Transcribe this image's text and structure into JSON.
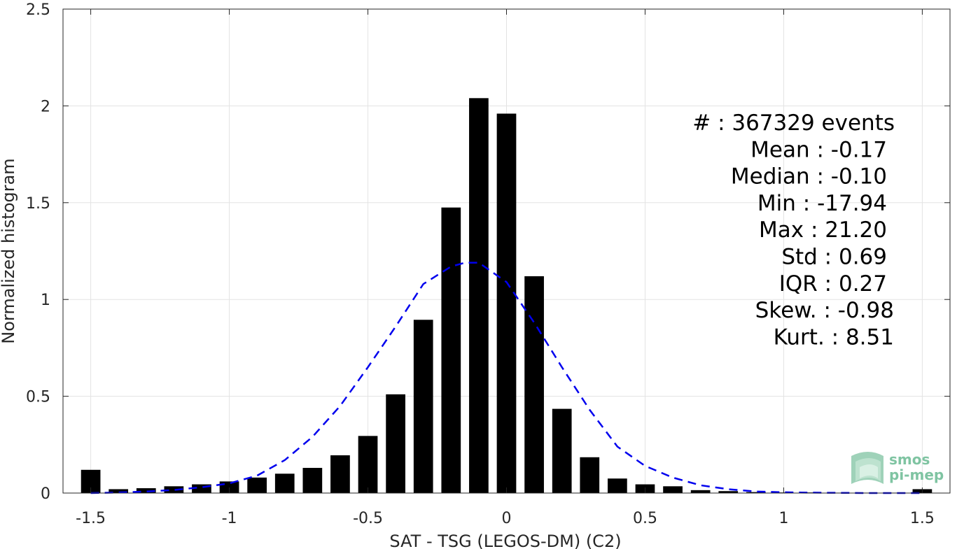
{
  "chart_data": {
    "type": "bar",
    "title": "",
    "xlabel": "SAT - TSG (LEGOS-DM) (C2)",
    "ylabel": "Normalized histogram",
    "xlim": [
      -1.6,
      1.6
    ],
    "ylim": [
      0,
      2.5
    ],
    "grid": true,
    "xticks": [
      -1.5,
      -1,
      -0.5,
      0,
      0.5,
      1,
      1.5
    ],
    "xtick_labels": [
      "-1.5",
      "-1",
      "-0.5",
      "0",
      "0.5",
      "1",
      "1.5"
    ],
    "yticks": [
      0,
      0.5,
      1,
      1.5,
      2,
      2.5
    ],
    "ytick_labels": [
      "0",
      "0.5",
      "1",
      "1.5",
      "2",
      "2.5"
    ],
    "bar_width": 0.07,
    "series": [
      {
        "type": "bar",
        "color": "#000000",
        "x": [
          -1.5,
          -1.4,
          -1.3,
          -1.2,
          -1.1,
          -1.0,
          -0.9,
          -0.8,
          -0.7,
          -0.6,
          -0.5,
          -0.4,
          -0.3,
          -0.2,
          -0.1,
          0.0,
          0.1,
          0.2,
          0.3,
          0.4,
          0.5,
          0.6,
          0.7,
          0.8,
          0.9,
          1.0,
          1.1,
          1.2,
          1.3,
          1.4,
          1.5
        ],
        "values": [
          0.12,
          0.02,
          0.025,
          0.035,
          0.045,
          0.06,
          0.08,
          0.1,
          0.13,
          0.195,
          0.295,
          0.51,
          0.895,
          1.475,
          2.04,
          1.96,
          1.12,
          0.435,
          0.185,
          0.075,
          0.045,
          0.035,
          0.015,
          0.01,
          0.005,
          0.003,
          0.003,
          0.002,
          0.002,
          0.002,
          0.02
        ]
      },
      {
        "type": "line",
        "style": "dashed",
        "color": "#0000ee",
        "x": [
          -1.5,
          -1.4,
          -1.3,
          -1.2,
          -1.1,
          -1.0,
          -0.9,
          -0.8,
          -0.7,
          -0.6,
          -0.5,
          -0.4,
          -0.3,
          -0.2,
          -0.15,
          -0.1,
          0.0,
          0.1,
          0.2,
          0.3,
          0.4,
          0.5,
          0.6,
          0.7,
          0.8,
          0.9,
          1.0,
          1.1,
          1.2,
          1.3,
          1.4,
          1.5
        ],
        "values": [
          0.0,
          0.003,
          0.008,
          0.016,
          0.03,
          0.05,
          0.09,
          0.17,
          0.29,
          0.45,
          0.65,
          0.86,
          1.08,
          1.17,
          1.19,
          1.19,
          1.09,
          0.88,
          0.65,
          0.43,
          0.24,
          0.14,
          0.08,
          0.04,
          0.02,
          0.008,
          0.004,
          0.002,
          0.001,
          0.0,
          0.0,
          0.0
        ]
      }
    ],
    "annotations": [
      "#  : 367329 events",
      "Mean : -0.17",
      "Median : -0.10",
      "Min : -17.94",
      "Max : 21.20",
      "Std : 0.69",
      "IQR : 0.27",
      "Skew. : -0.98",
      "Kurt. : 8.51"
    ]
  },
  "logo": {
    "line1": "smos",
    "line2": "pi-mep",
    "color": "#7fc4a2"
  }
}
